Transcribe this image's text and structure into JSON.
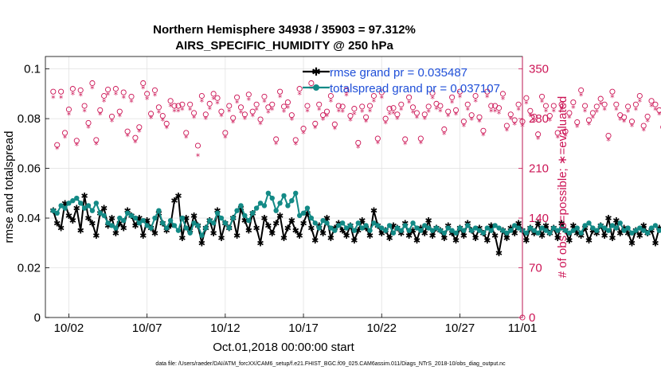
{
  "chart_data": {
    "type": "line",
    "title_line1": "Northern Hemisphere 34938 / 35903 = 97.312%",
    "title_line2": "AIRS_SPECIFIC_HUMIDITY @ 250 hPa",
    "xlabel": "Oct.01,2018 00:00:00 start",
    "ylabel": "rmse and totalspread",
    "ylabel_right": "# of obs: o=possible; ∗=evaluated",
    "footer": "data file: /Users/raeder/DAI/ATM_forcXX/CAM6_setup/f.e21.FHIST_BGC.f09_025.CAM6assim.011/Diags_NTrS_2018-10/obs_diag_output.nc",
    "x_range": [
      0.5,
      31.0
    ],
    "ylim": [
      0,
      0.105
    ],
    "ylim_right": [
      0,
      367.5
    ],
    "x_ticks": [
      2,
      7,
      12,
      17,
      22,
      27,
      32
    ],
    "x_tick_labels": [
      "10/02",
      "10/07",
      "10/12",
      "10/17",
      "10/22",
      "10/27",
      "11/01"
    ],
    "y_ticks": [
      0,
      0.02,
      0.04,
      0.06,
      0.08,
      0.1
    ],
    "y_tick_labels": [
      "0",
      "0.02",
      "0.04",
      "0.06",
      "0.08",
      "0.1"
    ],
    "y_right_ticks": [
      0,
      70,
      140,
      210,
      280,
      350
    ],
    "y_right_tick_labels": [
      "0",
      "70",
      "140",
      "210",
      "280",
      "350"
    ],
    "x_start": 1.0,
    "x_step": 0.25,
    "series": [
      {
        "name": "rmse",
        "legend": "rmse grand pr = 0.035487",
        "color": "#000000",
        "marker": "star",
        "values": [
          0.043,
          0.038,
          0.036,
          0.046,
          0.041,
          0.039,
          0.044,
          0.035,
          0.049,
          0.04,
          0.038,
          0.033,
          0.042,
          0.044,
          0.037,
          0.04,
          0.034,
          0.038,
          0.036,
          0.043,
          0.041,
          0.037,
          0.04,
          0.033,
          0.039,
          0.036,
          0.034,
          0.042,
          0.038,
          0.035,
          0.037,
          0.047,
          0.049,
          0.032,
          0.04,
          0.035,
          0.041,
          0.037,
          0.03,
          0.036,
          0.039,
          0.034,
          0.043,
          0.032,
          0.038,
          0.036,
          0.04,
          0.033,
          0.044,
          0.039,
          0.035,
          0.042,
          0.036,
          0.03,
          0.04,
          0.037,
          0.034,
          0.038,
          0.041,
          0.032,
          0.036,
          0.039,
          0.035,
          0.033,
          0.038,
          0.042,
          0.036,
          0.031,
          0.037,
          0.034,
          0.04,
          0.032,
          0.036,
          0.038,
          0.035,
          0.033,
          0.037,
          0.031,
          0.035,
          0.039,
          0.036,
          0.033,
          0.043,
          0.037,
          0.034,
          0.035,
          0.032,
          0.037,
          0.036,
          0.034,
          0.038,
          0.033,
          0.035,
          0.031,
          0.036,
          0.034,
          0.039,
          0.033,
          0.036,
          0.035,
          0.032,
          0.037,
          0.034,
          0.031,
          0.036,
          0.033,
          0.038,
          0.035,
          0.032,
          0.036,
          0.034,
          0.031,
          0.037,
          0.033,
          0.026,
          0.035,
          0.032,
          0.036,
          0.034,
          0.038,
          0.035,
          0.031,
          0.036,
          0.034,
          0.038,
          0.033,
          0.037,
          0.034,
          0.036,
          0.032,
          0.038,
          0.035,
          0.031,
          0.037,
          0.034,
          0.033,
          0.036,
          0.031,
          0.035,
          0.034,
          0.037,
          0.033,
          0.04,
          0.032,
          0.039,
          0.034,
          0.036,
          0.034,
          0.03,
          0.035,
          0.033,
          0.037,
          0.034,
          0.035,
          0.03,
          0.036,
          0.035,
          0.039,
          0.035,
          0.034,
          0.036,
          0.038,
          0.035,
          0.034,
          0.037,
          0.035
        ]
      },
      {
        "name": "totalspread",
        "legend": "totalspread grand pr = 0.037107",
        "color": "#138a86",
        "marker": "circle",
        "values": [
          0.043,
          0.042,
          0.045,
          0.044,
          0.046,
          0.047,
          0.048,
          0.046,
          0.044,
          0.045,
          0.043,
          0.046,
          0.042,
          0.041,
          0.038,
          0.037,
          0.036,
          0.04,
          0.039,
          0.042,
          0.041,
          0.04,
          0.038,
          0.039,
          0.037,
          0.036,
          0.04,
          0.043,
          0.038,
          0.036,
          0.039,
          0.037,
          0.035,
          0.04,
          0.036,
          0.034,
          0.038,
          0.037,
          0.033,
          0.036,
          0.039,
          0.038,
          0.042,
          0.04,
          0.038,
          0.036,
          0.04,
          0.043,
          0.045,
          0.041,
          0.039,
          0.042,
          0.044,
          0.046,
          0.045,
          0.05,
          0.048,
          0.043,
          0.046,
          0.049,
          0.045,
          0.047,
          0.05,
          0.041,
          0.042,
          0.044,
          0.04,
          0.038,
          0.036,
          0.039,
          0.038,
          0.036,
          0.035,
          0.037,
          0.038,
          0.036,
          0.037,
          0.035,
          0.038,
          0.036,
          0.037,
          0.035,
          0.038,
          0.037,
          0.036,
          0.035,
          0.037,
          0.034,
          0.036,
          0.035,
          0.037,
          0.035,
          0.038,
          0.036,
          0.035,
          0.037,
          0.036,
          0.035,
          0.036,
          0.035,
          0.034,
          0.036,
          0.035,
          0.034,
          0.036,
          0.035,
          0.037,
          0.035,
          0.036,
          0.035,
          0.034,
          0.036,
          0.035,
          0.037,
          0.036,
          0.035,
          0.034,
          0.035,
          0.037,
          0.036,
          0.035,
          0.034,
          0.036,
          0.035,
          0.034,
          0.036,
          0.035,
          0.034,
          0.036,
          0.035,
          0.036,
          0.035,
          0.034,
          0.035,
          0.036,
          0.034,
          0.037,
          0.038,
          0.036,
          0.035,
          0.037,
          0.036,
          0.035,
          0.037,
          0.036,
          0.038,
          0.035,
          0.036,
          0.034,
          0.035,
          0.036,
          0.035,
          0.034,
          0.036,
          0.037,
          0.035,
          0.036,
          0.034,
          0.036,
          0.037,
          0.035,
          0.036,
          0.035,
          0.034,
          0.036,
          0.035
        ]
      }
    ],
    "obs_possible": [
      318,
      243,
      318,
      260,
      293,
      322,
      249,
      320,
      298,
      274,
      330,
      250,
      292,
      312,
      321,
      283,
      322,
      290,
      317,
      262,
      311,
      253,
      268,
      330,
      315,
      287,
      320,
      296,
      284,
      273,
      305,
      298,
      298,
      300,
      260,
      300,
      288,
      242,
      312,
      286,
      301,
      315,
      309,
      290,
      260,
      298,
      281,
      310,
      296,
      286,
      314,
      290,
      300,
      279,
      311,
      296,
      300,
      251,
      318,
      297,
      303,
      285,
      250,
      322,
      266,
      298,
      330,
      273,
      300,
      285,
      290,
      312,
      272,
      298,
      297,
      320,
      284,
      294,
      246,
      297,
      282,
      298,
      312,
      252,
      317,
      280,
      294,
      295,
      286,
      300,
      251,
      310,
      296,
      288,
      252,
      286,
      297,
      316,
      301,
      298,
      265,
      290,
      310,
      292,
      318,
      276,
      300,
      285,
      312,
      282,
      263,
      318,
      298,
      298,
      295,
      315,
      270,
      286,
      278,
      300,
      276,
      309,
      291,
      283,
      258,
      311,
      298,
      284,
      298,
      260,
      300,
      262,
      288,
      303,
      275,
      320,
      298,
      278,
      288,
      297,
      308,
      300,
      256,
      318,
      300,
      285,
      282,
      297,
      276,
      300,
      312,
      270,
      283,
      305,
      300,
      292,
      268,
      308,
      300,
      290,
      235,
      306,
      300,
      296,
      284,
      310,
      298,
      275,
      303,
      280
    ],
    "obs_evaluated": [
      310,
      238,
      310,
      254,
      286,
      315,
      243,
      313,
      291,
      268,
      323,
      244,
      286,
      305,
      314,
      277,
      315,
      284,
      310,
      256,
      304,
      247,
      262,
      323,
      308,
      281,
      313,
      289,
      278,
      267,
      298,
      291,
      291,
      293,
      254,
      293,
      282,
      228,
      305,
      280,
      294,
      308,
      302,
      284,
      254,
      291,
      275,
      303,
      289,
      280,
      307,
      284,
      293,
      273,
      304,
      289,
      293,
      245,
      311,
      290,
      296,
      279,
      244,
      315,
      260,
      291,
      323,
      267,
      293,
      279,
      284,
      305,
      266,
      291,
      290,
      313,
      278,
      287,
      240,
      290,
      276,
      291,
      305,
      246,
      310,
      274,
      287,
      288,
      280,
      293,
      245,
      303,
      289,
      282,
      246,
      280,
      290,
      309,
      294,
      291,
      259,
      284,
      303,
      286,
      311,
      270,
      293,
      279,
      305,
      276,
      257,
      311,
      291,
      291,
      288,
      308,
      264,
      280,
      272,
      293,
      270,
      302,
      285,
      277,
      252,
      304,
      291,
      278,
      291,
      254,
      293,
      256,
      282,
      296,
      269,
      313,
      291,
      272,
      282,
      290,
      301,
      293,
      250,
      311,
      293,
      279,
      276,
      290,
      270,
      293,
      305,
      264,
      277,
      298,
      293,
      286,
      262,
      301,
      293,
      284,
      229,
      299,
      293,
      289,
      278,
      303,
      291,
      269,
      296,
      274
    ],
    "obs_zero_end": 0
  }
}
